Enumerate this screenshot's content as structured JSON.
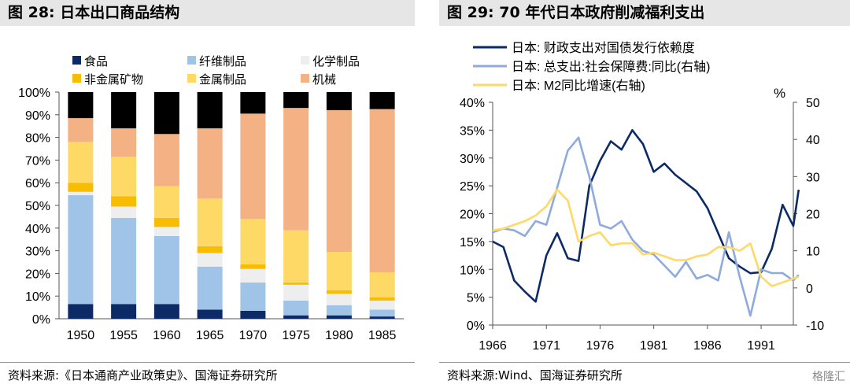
{
  "left": {
    "title": "图 28:  日本出口商品结构",
    "source": "资料来源:《日本通商产业政策史》、国海证券研究所"
  },
  "right": {
    "title": "图 29:  70 年代日本政府削减福利支出",
    "source": "资料来源:Wind、国海证券研究所",
    "right_axis_unit": "%"
  },
  "watermark": "格隆汇",
  "chart_data": [
    {
      "type": "bar",
      "stacked": true,
      "title": "日本出口商品结构",
      "categories": [
        "1950",
        "1955",
        "1960",
        "1965",
        "1970",
        "1975",
        "1980",
        "1985"
      ],
      "yticks": [
        "0%",
        "10%",
        "20%",
        "30%",
        "40%",
        "50%",
        "60%",
        "70%",
        "80%",
        "90%",
        "100%"
      ],
      "ylim": [
        0,
        100
      ],
      "legend_position": "top",
      "series": [
        {
          "name": "食品",
          "color": "#0c2a66",
          "values": [
            6.5,
            6.5,
            6.5,
            4,
            3.5,
            1.5,
            1.5,
            1
          ]
        },
        {
          "name": "纤维制品",
          "color": "#9fc4e8",
          "values": [
            48,
            38,
            30,
            19,
            12.5,
            6.5,
            4.5,
            3
          ]
        },
        {
          "name": "化学制品",
          "color": "#eeeeee",
          "values": [
            1.5,
            5,
            4,
            6,
            6,
            7,
            5,
            4
          ]
        },
        {
          "name": "非金属矿物",
          "color": "#f8bd00",
          "values": [
            4,
            4.5,
            4,
            3,
            2,
            1,
            1.5,
            1.5
          ]
        },
        {
          "name": "金属制品",
          "color": "#ffd966",
          "values": [
            18,
            17.5,
            14,
            21,
            20,
            23,
            17,
            11
          ]
        },
        {
          "name": "机械",
          "color": "#f4b183",
          "values": [
            10.5,
            12.5,
            23,
            31,
            46.5,
            54,
            62.5,
            72
          ]
        },
        {
          "name": "",
          "color": "#000000",
          "values": [
            11.5,
            16,
            18.5,
            16,
            9.5,
            7,
            8,
            7.5
          ]
        }
      ]
    },
    {
      "type": "line",
      "title": "70 年代日本政府削减福利支出",
      "x_range": [
        1966,
        1994
      ],
      "xticks": [
        "1966",
        "1971",
        "1976",
        "1981",
        "1986",
        "1991"
      ],
      "y_left": {
        "ticks": [
          "0%",
          "5%",
          "10%",
          "15%",
          "20%",
          "25%",
          "30%",
          "35%",
          "40%"
        ],
        "range": [
          0,
          40
        ]
      },
      "y_right": {
        "ticks": [
          "-10",
          "0",
          "10",
          "20",
          "30",
          "40",
          "50"
        ],
        "range": [
          -10,
          50
        ]
      },
      "legend_position": "top-left",
      "series": [
        {
          "name": "日本: 财政支出对国债发行依赖度",
          "color": "#0c2a66",
          "axis": "left",
          "x": [
            1966,
            1967,
            1968,
            1969,
            1970,
            1971,
            1972,
            1973,
            1974,
            1975,
            1976,
            1977,
            1978,
            1979,
            1980,
            1981,
            1982,
            1983,
            1984,
            1985,
            1986,
            1987,
            1988,
            1989,
            1990,
            1991,
            1992,
            1993,
            1994,
            1994.5
          ],
          "y": [
            15,
            14,
            8,
            6,
            4.2,
            12.5,
            16.5,
            12,
            11.5,
            25,
            29.5,
            33,
            31.5,
            35,
            32.5,
            27.5,
            29,
            27,
            25.5,
            24,
            21,
            16.5,
            12,
            10.5,
            9.3,
            9.5,
            13.7,
            21.6,
            17.8,
            24.3
          ]
        },
        {
          "name": "日本: 总支出:社会保障费:同比(右轴)",
          "color": "#8faadc",
          "axis": "right",
          "x": [
            1966,
            1967,
            1968,
            1969,
            1970,
            1971,
            1972,
            1973,
            1974,
            1975,
            1976,
            1977,
            1978,
            1979,
            1980,
            1981,
            1982,
            1983,
            1984,
            1985,
            1986,
            1987,
            1988,
            1989,
            1990,
            1991,
            1992,
            1993,
            1994,
            1994.5
          ],
          "y": [
            15,
            16,
            15.5,
            14,
            18,
            17,
            27,
            37,
            40.5,
            30,
            17,
            16,
            18,
            13,
            10,
            9,
            6,
            3,
            7,
            2.5,
            3.5,
            2,
            15,
            3,
            -7.5,
            5,
            4,
            4,
            2,
            3.5
          ]
        },
        {
          "name": "日本: M2同比增速(右轴)",
          "color": "#ffd966",
          "axis": "right",
          "x": [
            1966,
            1967,
            1968,
            1969,
            1970,
            1971,
            1972,
            1973,
            1974,
            1975,
            1976,
            1977,
            1978,
            1979,
            1980,
            1981,
            1982,
            1983,
            1984,
            1985,
            1986,
            1987,
            1988,
            1989,
            1990,
            1991,
            1992,
            1993,
            1994,
            1994.5
          ],
          "y": [
            15.5,
            16,
            17,
            18,
            19.5,
            22,
            26.5,
            23.5,
            12.5,
            14,
            15,
            11.5,
            12,
            12,
            9,
            9.5,
            8.5,
            7.5,
            7.5,
            8.5,
            9,
            11,
            11,
            10,
            12,
            3,
            0.5,
            1.5,
            2.5,
            3
          ]
        }
      ]
    }
  ]
}
